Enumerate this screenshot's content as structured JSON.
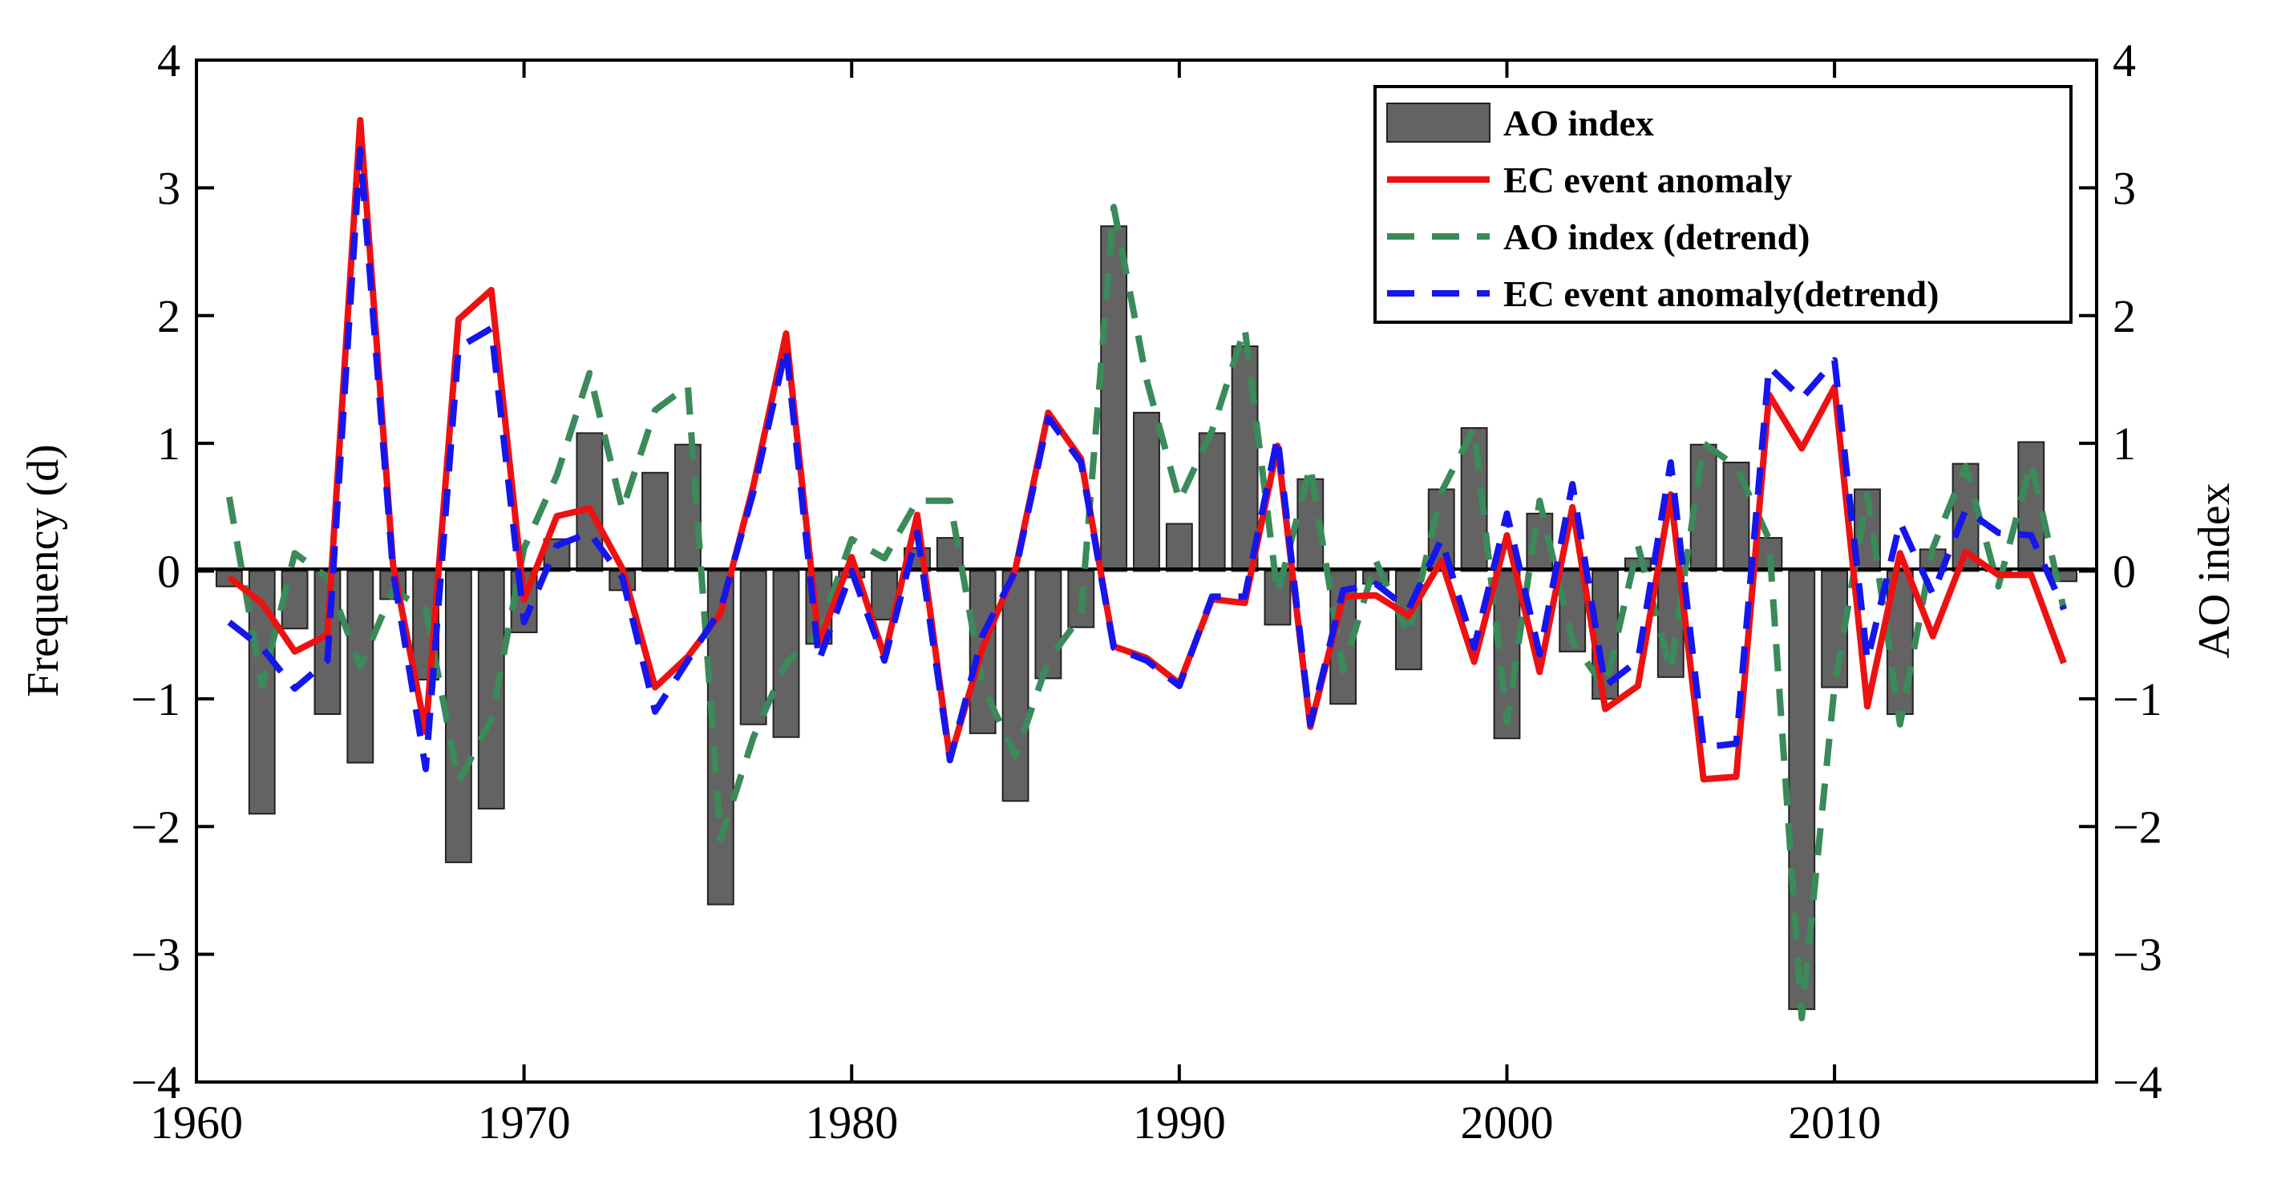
{
  "chart_data": {
    "type": "bar",
    "title": "",
    "xlabel": "",
    "ylabel": "Frequency (d)",
    "y2label": "AO index",
    "xlim": [
      1960,
      2018
    ],
    "ylim": [
      -4,
      4
    ],
    "y2lim": [
      -4,
      4
    ],
    "xticks": [
      1960,
      1970,
      1980,
      1990,
      2000,
      2010
    ],
    "xtick_labels": [
      "1960",
      "1970",
      "1980",
      "1990",
      "2000",
      "2010"
    ],
    "yticks": [
      -4,
      -3,
      -2,
      -1,
      0,
      1,
      2,
      3,
      4
    ],
    "ytick_labels": [
      "−4",
      "−3",
      "−2",
      "−1",
      "0",
      "1",
      "2",
      "3",
      "4"
    ],
    "legend_position": "top-right",
    "x": [
      1961,
      1962,
      1963,
      1964,
      1965,
      1966,
      1967,
      1968,
      1969,
      1970,
      1971,
      1972,
      1973,
      1974,
      1975,
      1976,
      1977,
      1978,
      1979,
      1980,
      1981,
      1982,
      1983,
      1984,
      1985,
      1986,
      1987,
      1988,
      1989,
      1990,
      1991,
      1992,
      1993,
      1994,
      1995,
      1996,
      1997,
      1998,
      1999,
      2000,
      2001,
      2002,
      2003,
      2004,
      2005,
      2006,
      2007,
      2008,
      2009,
      2010,
      2011,
      2012,
      2013,
      2014,
      2015,
      2016,
      2017
    ],
    "series": [
      {
        "name": "AO index",
        "kind": "bar",
        "color": "#636363",
        "values": [
          -0.12,
          -1.9,
          -0.45,
          -1.12,
          -1.5,
          -0.22,
          -0.85,
          -2.28,
          -1.86,
          -0.48,
          0.25,
          1.08,
          -0.15,
          0.77,
          0.99,
          -2.61,
          -1.2,
          -1.3,
          -0.57,
          -0.05,
          -0.38,
          0.18,
          0.26,
          -1.27,
          -1.8,
          -0.84,
          -0.44,
          2.7,
          1.24,
          0.37,
          1.08,
          1.76,
          -0.42,
          0.72,
          -1.04,
          -0.1,
          -0.77,
          0.64,
          1.12,
          -1.31,
          0.45,
          -0.63,
          -1.0,
          0.1,
          -0.83,
          0.99,
          0.85,
          0.26,
          -3.43,
          -0.91,
          0.64,
          -1.12,
          0.17,
          0.84,
          0.01,
          1.01,
          -0.08
        ]
      },
      {
        "name": "EC event anomaly",
        "kind": "line",
        "style": "solid",
        "color": "#ee1111",
        "values": [
          -0.05,
          -0.25,
          -0.63,
          -0.5,
          3.53,
          0.05,
          -1.26,
          1.97,
          2.2,
          -0.22,
          0.43,
          0.49,
          0.02,
          -0.91,
          -0.67,
          -0.33,
          0.67,
          1.86,
          -0.56,
          0.11,
          -0.67,
          0.44,
          -1.47,
          -0.6,
          0.02,
          1.24,
          0.88,
          -0.59,
          -0.68,
          -0.88,
          -0.22,
          -0.25,
          0.98,
          -1.22,
          -0.2,
          -0.19,
          -0.35,
          0.08,
          -0.71,
          0.28,
          -0.79,
          0.5,
          -1.08,
          -0.9,
          0.6,
          -1.63,
          -1.61,
          1.38,
          0.96,
          1.44,
          -1.06,
          0.14,
          -0.51,
          0.15,
          -0.03,
          -0.03,
          -0.72
        ]
      },
      {
        "name": "AO index (detrend)",
        "kind": "line",
        "style": "dashed",
        "color": "#3a8a5a",
        "values": [
          0.58,
          -0.9,
          0.14,
          -0.05,
          -0.75,
          -0.15,
          -0.3,
          -1.65,
          -1.16,
          0.18,
          0.75,
          1.55,
          0.48,
          1.26,
          1.45,
          -2.1,
          -1.3,
          -0.72,
          -0.48,
          0.25,
          0.1,
          0.55,
          0.55,
          -0.9,
          -1.45,
          -0.7,
          -0.35,
          2.85,
          1.5,
          0.55,
          1.1,
          1.9,
          -0.18,
          0.82,
          -0.78,
          0.08,
          -0.5,
          0.62,
          1.12,
          -1.18,
          0.55,
          -0.55,
          -0.92,
          0.2,
          -0.78,
          1.0,
          0.82,
          0.25,
          -3.5,
          -0.9,
          0.6,
          -1.2,
          0.18,
          0.82,
          -0.12,
          0.85,
          -0.3
        ]
      },
      {
        "name": "EC event anomaly(detrend)",
        "kind": "line",
        "style": "dashed",
        "color": "#1515ee",
        "values": [
          -0.4,
          -0.6,
          -0.92,
          -0.7,
          3.3,
          0.0,
          -1.55,
          1.75,
          1.9,
          -0.4,
          0.2,
          0.3,
          -0.05,
          -1.1,
          -0.7,
          -0.3,
          0.62,
          1.75,
          -0.7,
          0.0,
          -0.7,
          0.3,
          -1.48,
          -0.5,
          0.0,
          1.2,
          0.85,
          -0.6,
          -0.7,
          -0.9,
          -0.2,
          -0.2,
          1.05,
          -1.2,
          -0.15,
          -0.1,
          -0.3,
          0.25,
          -0.6,
          0.45,
          -0.65,
          0.68,
          -0.9,
          -0.7,
          0.85,
          -1.38,
          -1.35,
          1.6,
          1.35,
          1.65,
          -0.7,
          0.38,
          -0.18,
          0.48,
          0.3,
          0.28,
          -0.3
        ]
      }
    ]
  }
}
